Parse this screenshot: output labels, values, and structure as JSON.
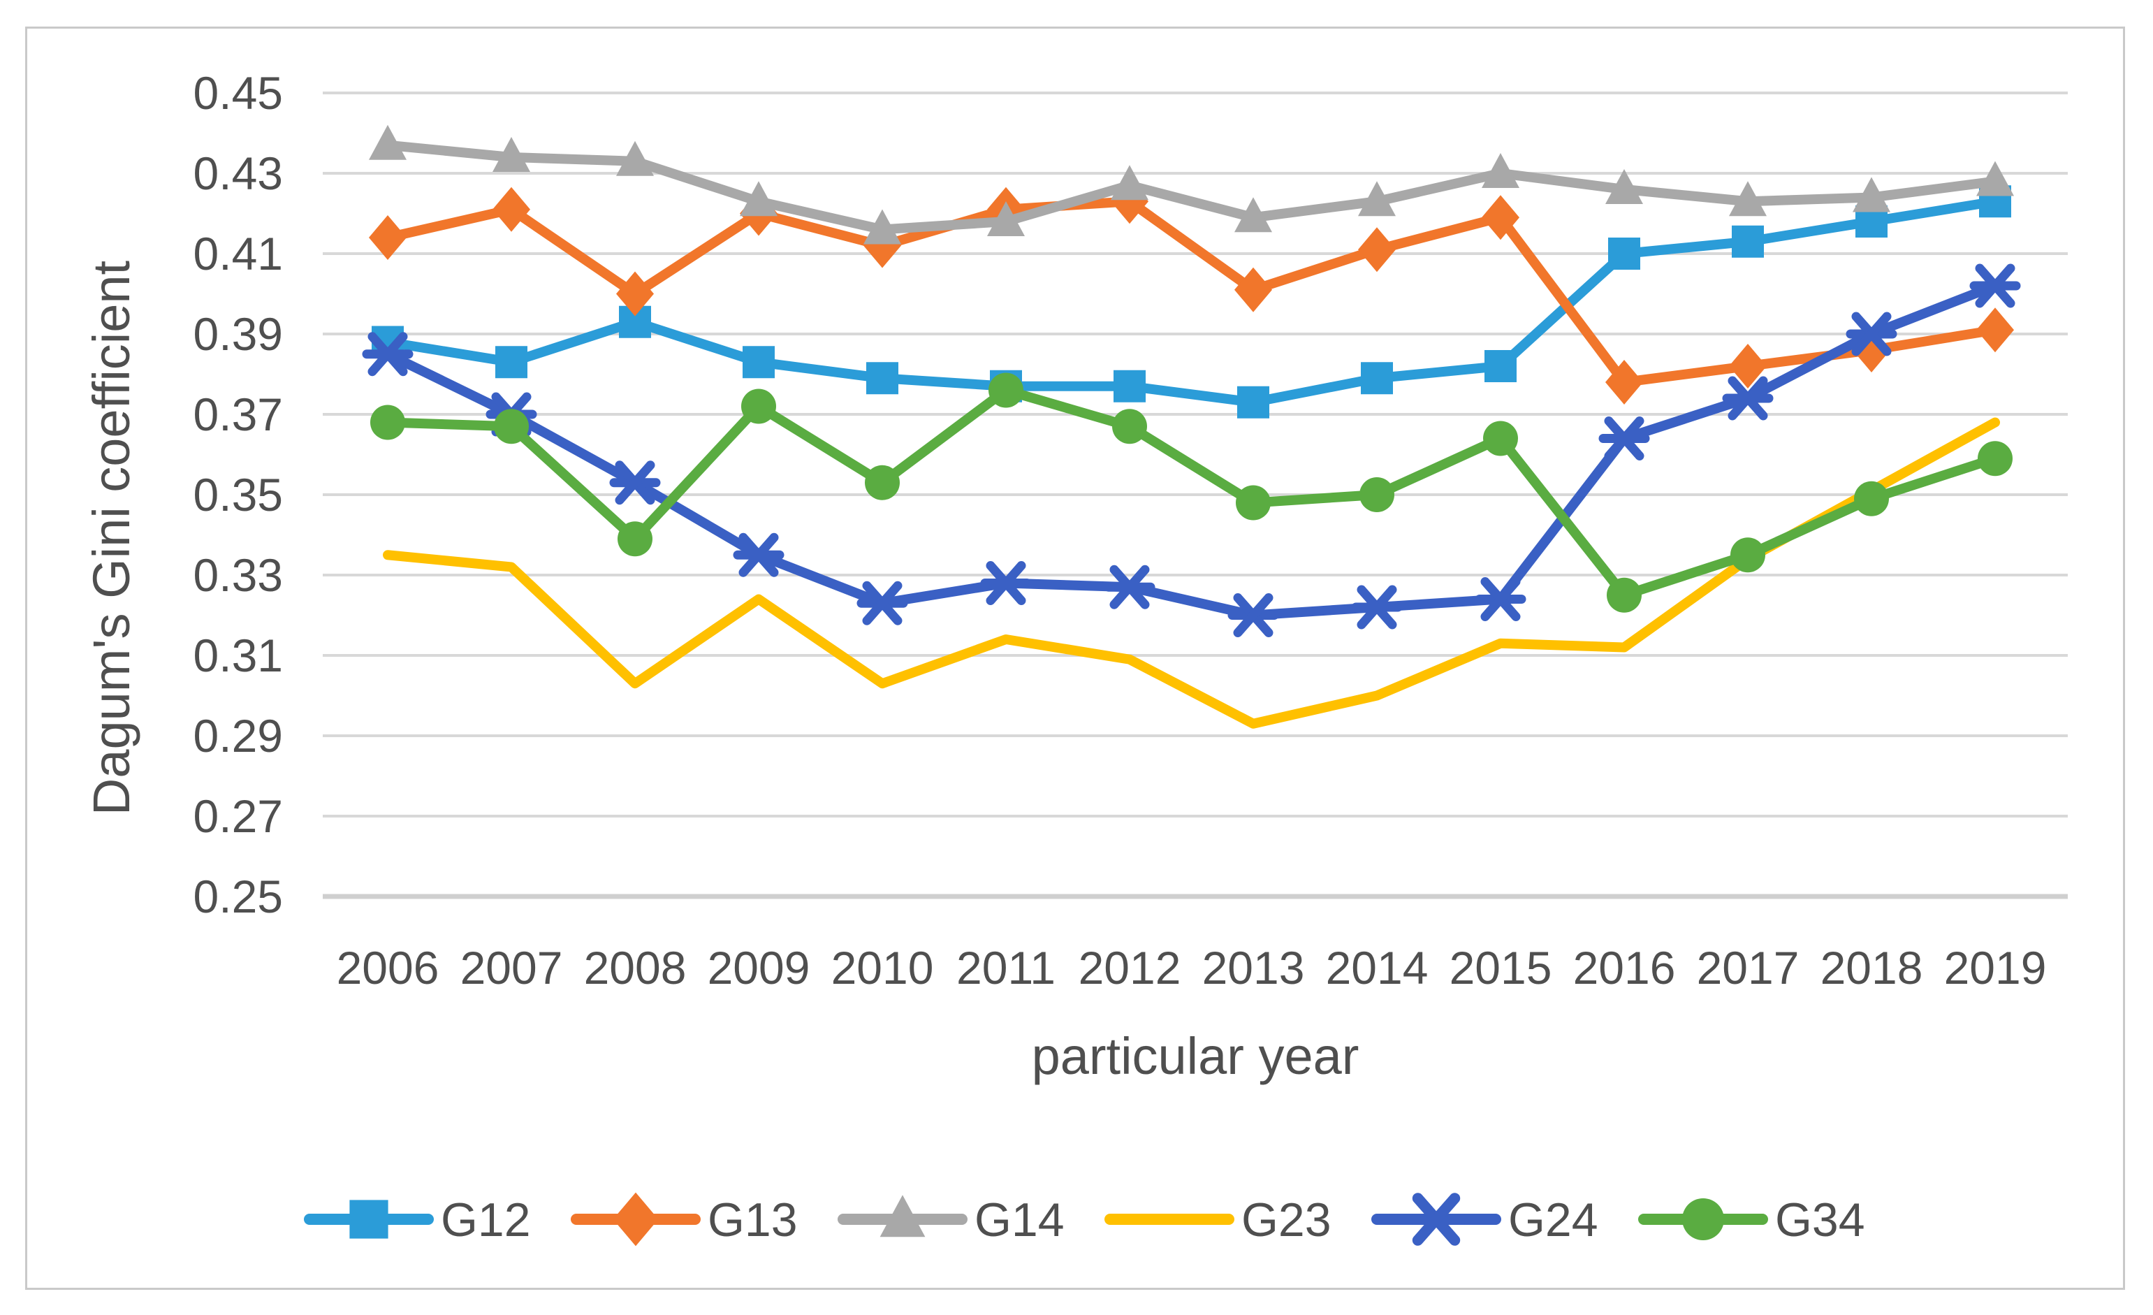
{
  "figure": {
    "background": "#ffffff",
    "border_color": "#c9c9c9",
    "text_color": "#4f4f4f",
    "gridline_color": "#d8d8d8",
    "axisline_color": "#cfcfcf"
  },
  "chart_data": {
    "type": "line",
    "title": "",
    "xlabel": "particular year",
    "ylabel": "Dagum's Gini coefficient",
    "ylim": [
      0.25,
      0.45
    ],
    "ytick_step": 0.02,
    "yticks": [
      "0.45",
      "0.43",
      "0.41",
      "0.39",
      "0.37",
      "0.35",
      "0.33",
      "0.31",
      "0.29",
      "0.27",
      "0.25"
    ],
    "grid": true,
    "legend_position": "bottom",
    "categories": [
      "2006",
      "2007",
      "2008",
      "2009",
      "2010",
      "2011",
      "2012",
      "2013",
      "2014",
      "2015",
      "2016",
      "2017",
      "2018",
      "2019"
    ],
    "series": [
      {
        "name": "G12",
        "color": "#2B9CD8",
        "marker": "square",
        "values": [
          0.388,
          0.383,
          0.393,
          0.383,
          0.379,
          0.377,
          0.377,
          0.373,
          0.379,
          0.382,
          0.41,
          0.413,
          0.418,
          0.423
        ]
      },
      {
        "name": "G13",
        "color": "#F1762B",
        "marker": "diamond",
        "values": [
          0.414,
          0.421,
          0.4,
          0.42,
          0.412,
          0.421,
          0.423,
          0.401,
          0.411,
          0.419,
          0.378,
          0.382,
          0.386,
          0.391
        ]
      },
      {
        "name": "G14",
        "color": "#A8A8A8",
        "marker": "triangle",
        "values": [
          0.437,
          0.434,
          0.433,
          0.423,
          0.416,
          0.418,
          0.427,
          0.419,
          0.423,
          0.43,
          0.426,
          0.423,
          0.424,
          0.428
        ]
      },
      {
        "name": "G23",
        "color": "#FFC000",
        "marker": "none",
        "values": [
          0.335,
          0.332,
          0.303,
          0.324,
          0.303,
          0.314,
          0.309,
          0.293,
          0.3,
          0.313,
          0.312,
          0.334,
          0.351,
          0.368
        ]
      },
      {
        "name": "G24",
        "color": "#3A60C4",
        "marker": "asterisk",
        "values": [
          0.385,
          0.37,
          0.353,
          0.335,
          0.323,
          0.328,
          0.327,
          0.32,
          0.322,
          0.324,
          0.364,
          0.374,
          0.39,
          0.402
        ]
      },
      {
        "name": "G34",
        "color": "#5AAC41",
        "marker": "circle",
        "values": [
          0.368,
          0.367,
          0.339,
          0.372,
          0.353,
          0.376,
          0.367,
          0.348,
          0.35,
          0.364,
          0.325,
          0.335,
          0.349,
          0.359
        ]
      }
    ]
  }
}
